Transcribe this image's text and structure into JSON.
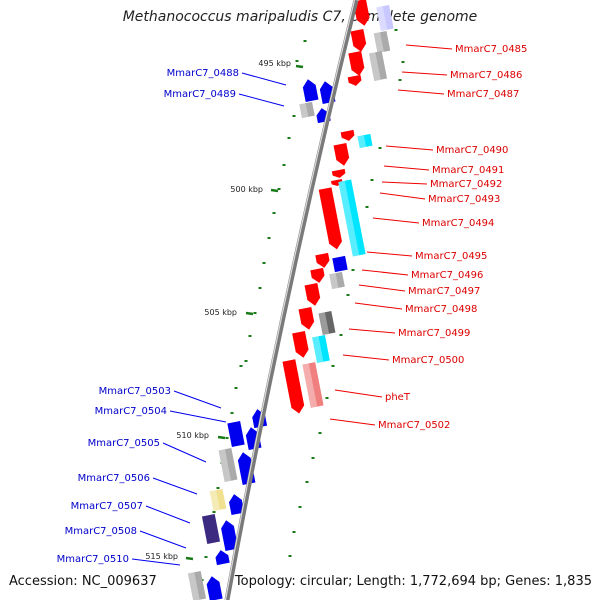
{
  "title": "Methanococcus maripaludis C7, complete genome",
  "accession": "Accession: NC_009637",
  "topology": "Topology: circular; Length: 1,772,694 bp; Genes: 1,835",
  "colors": {
    "backbone": "#7a7a7a",
    "backbone_highlight": "#dcdcdc",
    "label_forward": "#0000cc",
    "label_reverse": "#dd0000",
    "leader_forward": "#0000ee",
    "leader_reverse": "#ee0000",
    "tick": "#1a7a1a",
    "gene_red": "#ff0000",
    "gene_blue": "#0000ee",
    "gene_cyan": "#00e5ff",
    "gene_gray": "#aaaaaa",
    "gene_lavender": "#c8c8ff",
    "gene_dark_gray": "#666666",
    "gene_pink": "#f08080",
    "gene_yellow": "#f0e090",
    "gene_purple": "#3c2a80"
  },
  "scale_labels": [
    "495 kbp",
    "500 kbp",
    "505 kbp",
    "510 kbp",
    "515 kbp"
  ],
  "forward_genes": [
    "MmarC7_0488",
    "MmarC7_0489",
    "MmarC7_0503",
    "MmarC7_0504",
    "MmarC7_0505",
    "MmarC7_0506",
    "MmarC7_0507",
    "MmarC7_0508",
    "MmarC7_0510"
  ],
  "reverse_genes": [
    "MmarC7_0485",
    "MmarC7_0486",
    "MmarC7_0487",
    "MmarC7_0490",
    "MmarC7_0491",
    "MmarC7_0492",
    "MmarC7_0493",
    "MmarC7_0494",
    "MmarC7_0495",
    "MmarC7_0496",
    "MmarC7_0497",
    "MmarC7_0498",
    "MmarC7_0499",
    "MmarC7_0500",
    "pheT",
    "MmarC7_0502"
  ]
}
